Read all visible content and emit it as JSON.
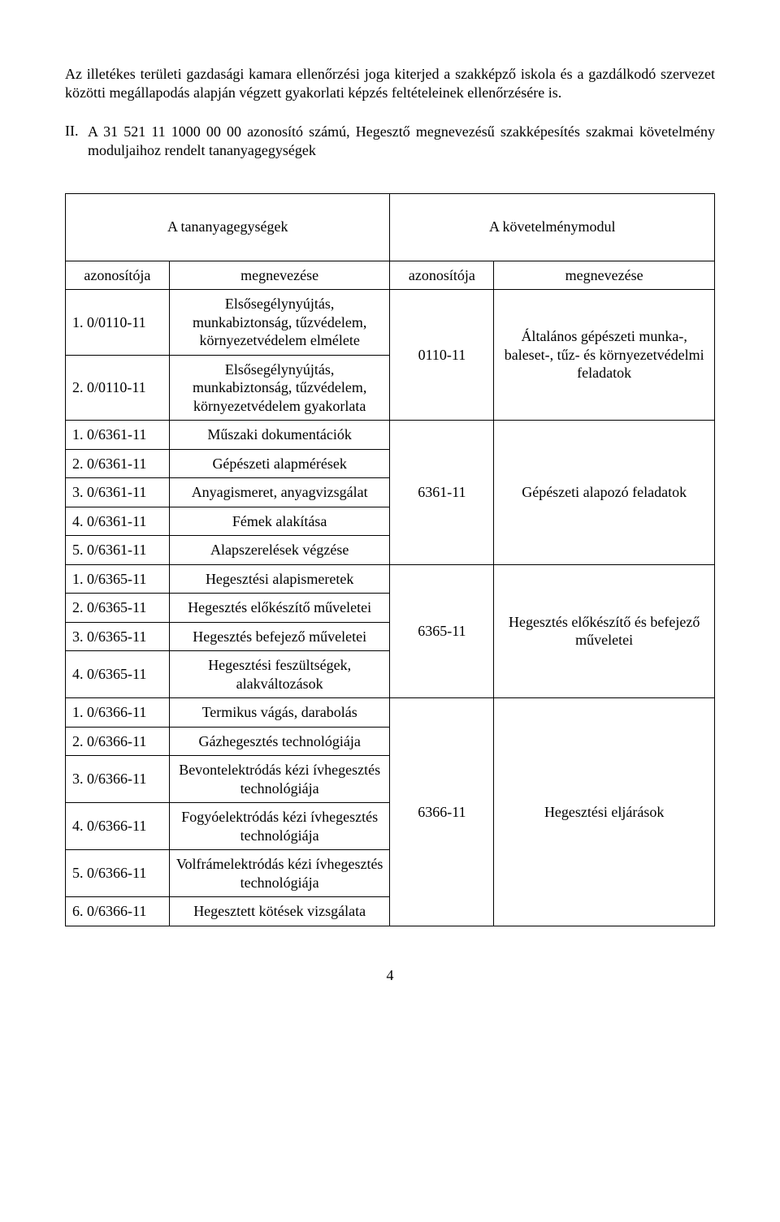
{
  "para1": "Az illetékes területi gazdasági kamara ellenőrzési joga kiterjed a szakképző iskola és a gazdálkodó szervezet közötti megállapodás alapján végzett gyakorlati képzés feltételeinek ellenőrzésére is.",
  "section_num": "II.",
  "section_text": "A 31 521 11 1000 00 00 azonosító számú, Hegesztő megnevezésű szakképesítés szakmai követelmény moduljaihoz rendelt tananyagegységek",
  "header_left": "A tananyagegységek",
  "header_right": "A követelménymodul",
  "sub_left_1": "azonosítója",
  "sub_left_2": "megnevezése",
  "sub_right_1": "azonosítója",
  "sub_right_2": "megnevezése",
  "groups": [
    {
      "mod_id": "0110-11",
      "mod_name": "Általános gépészeti munka-, baleset-, tűz- és környezetvédelmi feladatok",
      "rows": [
        {
          "id": "1. 0/0110-11",
          "name": "Elsősegélynyújtás, munkabiztonság, tűzvédelem, környezetvédelem elmélete"
        },
        {
          "id": "2. 0/0110-11",
          "name": "Elsősegélynyújtás, munkabiztonság, tűzvédelem, környezetvédelem gyakorlata"
        }
      ]
    },
    {
      "mod_id": "6361-11",
      "mod_name": "Gépészeti alapozó feladatok",
      "rows": [
        {
          "id": "1. 0/6361-11",
          "name": "Műszaki dokumentációk"
        },
        {
          "id": "2. 0/6361-11",
          "name": "Gépészeti alapmérések"
        },
        {
          "id": "3. 0/6361-11",
          "name": "Anyagismeret, anyagvizsgálat"
        },
        {
          "id": "4. 0/6361-11",
          "name": "Fémek alakítása"
        },
        {
          "id": "5. 0/6361-11",
          "name": "Alapszerelések végzése"
        }
      ]
    },
    {
      "mod_id": "6365-11",
      "mod_name": "Hegesztés előkészítő és befejező műveletei",
      "rows": [
        {
          "id": "1. 0/6365-11",
          "name": "Hegesztési alapismeretek"
        },
        {
          "id": "2. 0/6365-11",
          "name": "Hegesztés előkészítő műveletei"
        },
        {
          "id": "3. 0/6365-11",
          "name": "Hegesztés befejező műveletei"
        },
        {
          "id": "4. 0/6365-11",
          "name": "Hegesztési feszültségek, alakváltozások"
        }
      ]
    },
    {
      "mod_id": "6366-11",
      "mod_name": "Hegesztési eljárások",
      "rows": [
        {
          "id": "1. 0/6366-11",
          "name": "Termikus vágás, darabolás"
        },
        {
          "id": "2. 0/6366-11",
          "name": "Gázhegesztés technológiája"
        },
        {
          "id": "3. 0/6366-11",
          "name": "Bevontelektródás kézi ívhegesztés technológiája"
        },
        {
          "id": "4. 0/6366-11",
          "name": "Fogyóelektródás kézi ívhegesztés technológiája"
        },
        {
          "id": "5. 0/6366-11",
          "name": "Volfrámelektródás kézi ívhegesztés technológiája"
        },
        {
          "id": "6. 0/6366-11",
          "name": "Hegesztett kötések vizsgálata"
        }
      ]
    }
  ],
  "page_number": "4",
  "col_widths": [
    "16%",
    "34%",
    "16%",
    "34%"
  ]
}
